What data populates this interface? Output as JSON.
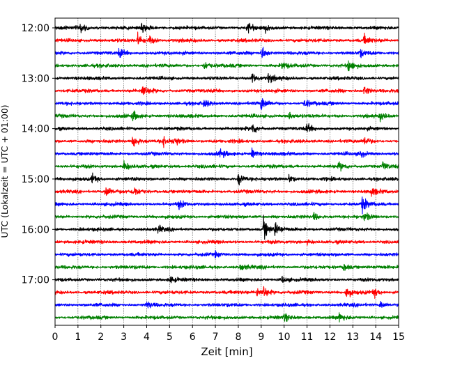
{
  "chart_data": {
    "type": "line",
    "title": "",
    "xlabel": "Zeit  [min]",
    "ylabel": "UTC (Lokalzeit = UTC + 01:00)",
    "xlim": [
      0,
      15
    ],
    "x_ticks": [
      "0",
      "1",
      "2",
      "3",
      "4",
      "5",
      "6",
      "7",
      "8",
      "9",
      "10",
      "11",
      "12",
      "13",
      "14",
      "15"
    ],
    "y_tick_labels": [
      "12:00",
      "13:00",
      "14:00",
      "15:00",
      "16:00",
      "17:00"
    ],
    "grid": "vertical dotted",
    "rows_per_hour": 4,
    "colors_cycle": [
      "#000000",
      "#ff0000",
      "#0000ff",
      "#008000"
    ],
    "series": [
      {
        "start": "12:00",
        "color": "#000000",
        "events": [
          [
            1.1,
            1.0
          ],
          [
            3.8,
            0.9
          ],
          [
            8.4,
            1.1
          ],
          [
            9.1,
            0.9
          ]
        ]
      },
      {
        "start": "12:15",
        "color": "#ff0000",
        "events": [
          [
            3.6,
            1.3
          ],
          [
            4.1,
            0.9
          ],
          [
            13.5,
            1.0
          ]
        ]
      },
      {
        "start": "12:30",
        "color": "#0000ff",
        "events": [
          [
            2.8,
            0.9
          ],
          [
            9.0,
            1.6
          ],
          [
            13.3,
            0.8
          ]
        ]
      },
      {
        "start": "12:45",
        "color": "#008000",
        "events": [
          [
            6.5,
            0.9
          ],
          [
            9.9,
            0.8
          ],
          [
            12.8,
            1.3
          ]
        ]
      },
      {
        "start": "13:00",
        "color": "#000000",
        "events": [
          [
            8.6,
            1.3
          ],
          [
            9.3,
            1.0
          ]
        ]
      },
      {
        "start": "13:15",
        "color": "#ff0000",
        "events": [
          [
            3.8,
            1.4
          ],
          [
            13.5,
            1.1
          ]
        ]
      },
      {
        "start": "13:30",
        "color": "#0000ff",
        "events": [
          [
            6.5,
            0.8
          ],
          [
            9.0,
            1.5
          ],
          [
            10.9,
            0.9
          ]
        ]
      },
      {
        "start": "13:45",
        "color": "#008000",
        "events": [
          [
            3.4,
            1.0
          ],
          [
            10.2,
            0.8
          ],
          [
            14.2,
            0.8
          ]
        ]
      },
      {
        "start": "14:00",
        "color": "#000000",
        "events": [
          [
            8.6,
            1.3
          ],
          [
            11.0,
            0.9
          ]
        ]
      },
      {
        "start": "14:15",
        "color": "#ff0000",
        "events": [
          [
            3.4,
            1.6
          ],
          [
            4.7,
            1.1
          ],
          [
            5.2,
            1.0
          ],
          [
            13.5,
            0.9
          ]
        ]
      },
      {
        "start": "14:30",
        "color": "#0000ff",
        "events": [
          [
            7.2,
            0.8
          ],
          [
            8.6,
            1.0
          ],
          [
            13.3,
            0.8
          ]
        ]
      },
      {
        "start": "14:45",
        "color": "#008000",
        "events": [
          [
            3.0,
            1.0
          ],
          [
            12.4,
            0.8
          ],
          [
            14.3,
            0.9
          ]
        ]
      },
      {
        "start": "15:00",
        "color": "#000000",
        "events": [
          [
            1.6,
            1.0
          ],
          [
            8.0,
            1.3
          ],
          [
            10.2,
            0.9
          ]
        ]
      },
      {
        "start": "15:15",
        "color": "#ff0000",
        "events": [
          [
            2.2,
            1.4
          ],
          [
            3.4,
            1.3
          ],
          [
            13.8,
            0.9
          ]
        ]
      },
      {
        "start": "15:30",
        "color": "#0000ff",
        "events": [
          [
            5.4,
            0.8
          ],
          [
            13.4,
            1.6
          ]
        ]
      },
      {
        "start": "15:45",
        "color": "#008000",
        "events": [
          [
            11.3,
            0.8
          ],
          [
            13.5,
            0.9
          ]
        ]
      },
      {
        "start": "16:00",
        "color": "#000000",
        "events": [
          [
            4.5,
            0.7
          ],
          [
            9.1,
            2.3
          ],
          [
            9.6,
            1.4
          ]
        ]
      },
      {
        "start": "16:15",
        "color": "#ff0000",
        "events": [
          [
            11.0,
            0.4
          ]
        ]
      },
      {
        "start": "16:30",
        "color": "#0000ff",
        "events": [
          [
            7.0,
            0.5
          ]
        ]
      },
      {
        "start": "16:45",
        "color": "#008000",
        "events": [
          [
            8.1,
            0.8
          ],
          [
            12.6,
            0.8
          ]
        ]
      },
      {
        "start": "17:00",
        "color": "#000000",
        "events": [
          [
            5.0,
            0.7
          ],
          [
            9.9,
            0.8
          ]
        ]
      },
      {
        "start": "17:15",
        "color": "#ff0000",
        "events": [
          [
            8.8,
            1.1
          ],
          [
            9.1,
            1.2
          ],
          [
            12.7,
            1.4
          ],
          [
            13.9,
            0.9
          ]
        ]
      },
      {
        "start": "17:30",
        "color": "#0000ff",
        "events": [
          [
            4.0,
            0.8
          ],
          [
            14.2,
            0.9
          ]
        ]
      },
      {
        "start": "17:45",
        "color": "#008000",
        "events": [
          [
            10.0,
            0.8
          ],
          [
            12.4,
            0.9
          ]
        ]
      }
    ]
  }
}
